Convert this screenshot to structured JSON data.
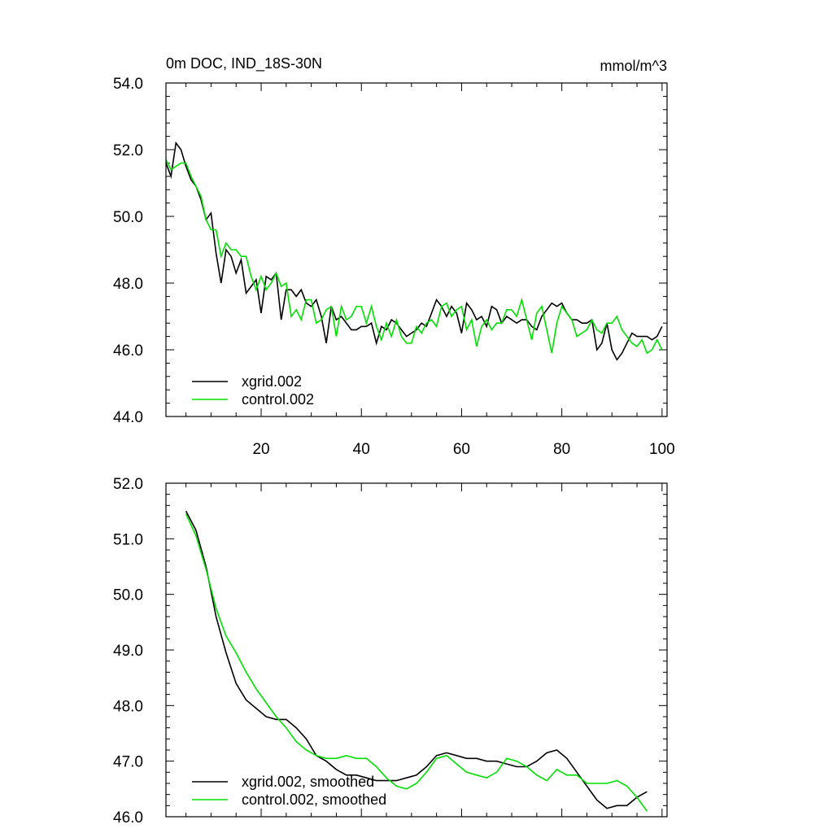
{
  "chart_data": [
    {
      "type": "line",
      "title": "0m DOC, IND_18S-30N",
      "units_label": "mmol/m^3",
      "xlim": [
        1,
        101
      ],
      "ylim": [
        44.0,
        54.0
      ],
      "yticks": [
        "44.0",
        "46.0",
        "48.0",
        "50.0",
        "52.0",
        "54.0"
      ],
      "xticks": [
        "20",
        "40",
        "60",
        "80",
        "100"
      ],
      "legend_position": "bottom-left",
      "series": [
        {
          "name": "xgrid.002",
          "color": "#000000",
          "values": [
            51.6,
            51.2,
            52.2,
            52.0,
            51.5,
            51.1,
            50.9,
            50.5,
            49.9,
            50.1,
            48.9,
            48.0,
            49.0,
            48.8,
            48.3,
            48.7,
            47.7,
            47.9,
            48.1,
            47.1,
            48.2,
            48.1,
            48.3,
            46.9,
            47.8,
            47.8,
            47.6,
            47.8,
            47.4,
            47.3,
            47.5,
            47.0,
            46.2,
            47.3,
            46.9,
            47.0,
            46.8,
            46.6,
            46.6,
            46.7,
            46.7,
            46.8,
            46.2,
            46.7,
            46.6,
            46.9,
            46.8,
            46.6,
            46.4,
            46.5,
            46.6,
            46.8,
            46.7,
            47.1,
            47.5,
            47.3,
            47.0,
            47.3,
            47.1,
            46.5,
            47.4,
            47.2,
            46.9,
            47.0,
            46.7,
            47.3,
            47.2,
            46.8,
            47.0,
            46.9,
            46.8,
            46.9,
            46.9,
            46.7,
            46.6,
            47.0,
            47.2,
            47.4,
            47.3,
            47.4,
            47.1,
            46.9,
            46.9,
            46.8,
            46.8,
            46.9,
            46.0,
            46.2,
            46.8,
            46.0,
            45.7,
            45.9,
            46.2,
            46.5,
            46.4,
            46.4,
            46.4,
            46.3,
            46.4,
            46.7
          ]
        },
        {
          "name": "control.002",
          "color": "#00e000",
          "values": [
            51.7,
            51.4,
            51.5,
            51.6,
            51.6,
            51.2,
            50.9,
            50.6,
            49.9,
            49.6,
            49.6,
            48.8,
            49.2,
            49.0,
            49.0,
            48.8,
            48.8,
            48.2,
            47.8,
            48.2,
            47.8,
            48.0,
            48.3,
            47.9,
            48.0,
            47.0,
            47.2,
            46.9,
            47.5,
            47.5,
            46.8,
            46.9,
            47.2,
            47.3,
            46.4,
            47.3,
            46.9,
            47.0,
            47.3,
            47.3,
            46.8,
            47.3,
            46.7,
            46.3,
            46.8,
            46.4,
            46.9,
            46.4,
            46.2,
            46.2,
            46.7,
            46.5,
            46.8,
            46.9,
            46.7,
            47.3,
            47.4,
            47.0,
            47.2,
            47.3,
            46.6,
            46.9,
            46.1,
            46.7,
            46.9,
            46.6,
            46.8,
            46.8,
            47.2,
            47.2,
            47.0,
            47.5,
            46.9,
            46.3,
            47.1,
            47.3,
            46.6,
            45.9,
            46.8,
            47.3,
            47.1,
            46.9,
            46.4,
            46.5,
            46.6,
            46.9,
            46.6,
            46.5,
            46.8,
            46.8,
            47.0,
            46.6,
            46.4,
            46.2,
            46.1,
            46.3,
            45.9,
            46.0,
            46.3,
            46.0
          ]
        }
      ]
    },
    {
      "type": "line",
      "xlim": [
        1,
        101
      ],
      "ylim": [
        46.0,
        52.0
      ],
      "yticks": [
        "46.0",
        "47.0",
        "48.0",
        "49.0",
        "50.0",
        "51.0",
        "52.0"
      ],
      "legend_position": "bottom-left",
      "series": [
        {
          "name": "xgrid.002, smoothed",
          "color": "#000000",
          "x": [
            5,
            7,
            9,
            11,
            13,
            15,
            17,
            19,
            21,
            23,
            25,
            27,
            29,
            31,
            33,
            35,
            37,
            39,
            41,
            43,
            45,
            47,
            49,
            51,
            53,
            55,
            57,
            59,
            61,
            63,
            65,
            67,
            69,
            71,
            73,
            75,
            77,
            79,
            81,
            83,
            85,
            87,
            89,
            91,
            93,
            95,
            97
          ],
          "values": [
            51.5,
            51.15,
            50.5,
            49.6,
            48.95,
            48.4,
            48.1,
            47.95,
            47.8,
            47.75,
            47.75,
            47.6,
            47.4,
            47.1,
            47.0,
            46.85,
            46.75,
            46.75,
            46.7,
            46.65,
            46.65,
            46.65,
            46.7,
            46.75,
            46.9,
            47.1,
            47.15,
            47.1,
            47.05,
            47.05,
            47.0,
            47.0,
            46.95,
            46.9,
            46.9,
            47.0,
            47.15,
            47.2,
            47.05,
            46.8,
            46.55,
            46.3,
            46.15,
            46.2,
            46.2,
            46.35,
            46.45
          ]
        },
        {
          "name": "control.002, smoothed",
          "color": "#00e000",
          "x": [
            5,
            7,
            9,
            11,
            13,
            15,
            17,
            19,
            21,
            23,
            25,
            27,
            29,
            31,
            33,
            35,
            37,
            39,
            41,
            43,
            45,
            47,
            49,
            51,
            53,
            55,
            57,
            59,
            61,
            63,
            65,
            67,
            69,
            71,
            73,
            75,
            77,
            79,
            81,
            83,
            85,
            87,
            89,
            91,
            93,
            95,
            97
          ],
          "values": [
            51.45,
            51.05,
            50.45,
            49.75,
            49.25,
            48.95,
            48.6,
            48.3,
            48.05,
            47.8,
            47.6,
            47.35,
            47.2,
            47.1,
            47.05,
            47.05,
            47.1,
            47.05,
            47.05,
            46.9,
            46.7,
            46.55,
            46.5,
            46.6,
            46.8,
            47.05,
            47.1,
            46.95,
            46.8,
            46.75,
            46.7,
            46.8,
            47.05,
            47.0,
            46.9,
            46.75,
            46.65,
            46.85,
            46.75,
            46.75,
            46.6,
            46.6,
            46.6,
            46.65,
            46.55,
            46.35,
            46.1
          ]
        }
      ]
    }
  ]
}
